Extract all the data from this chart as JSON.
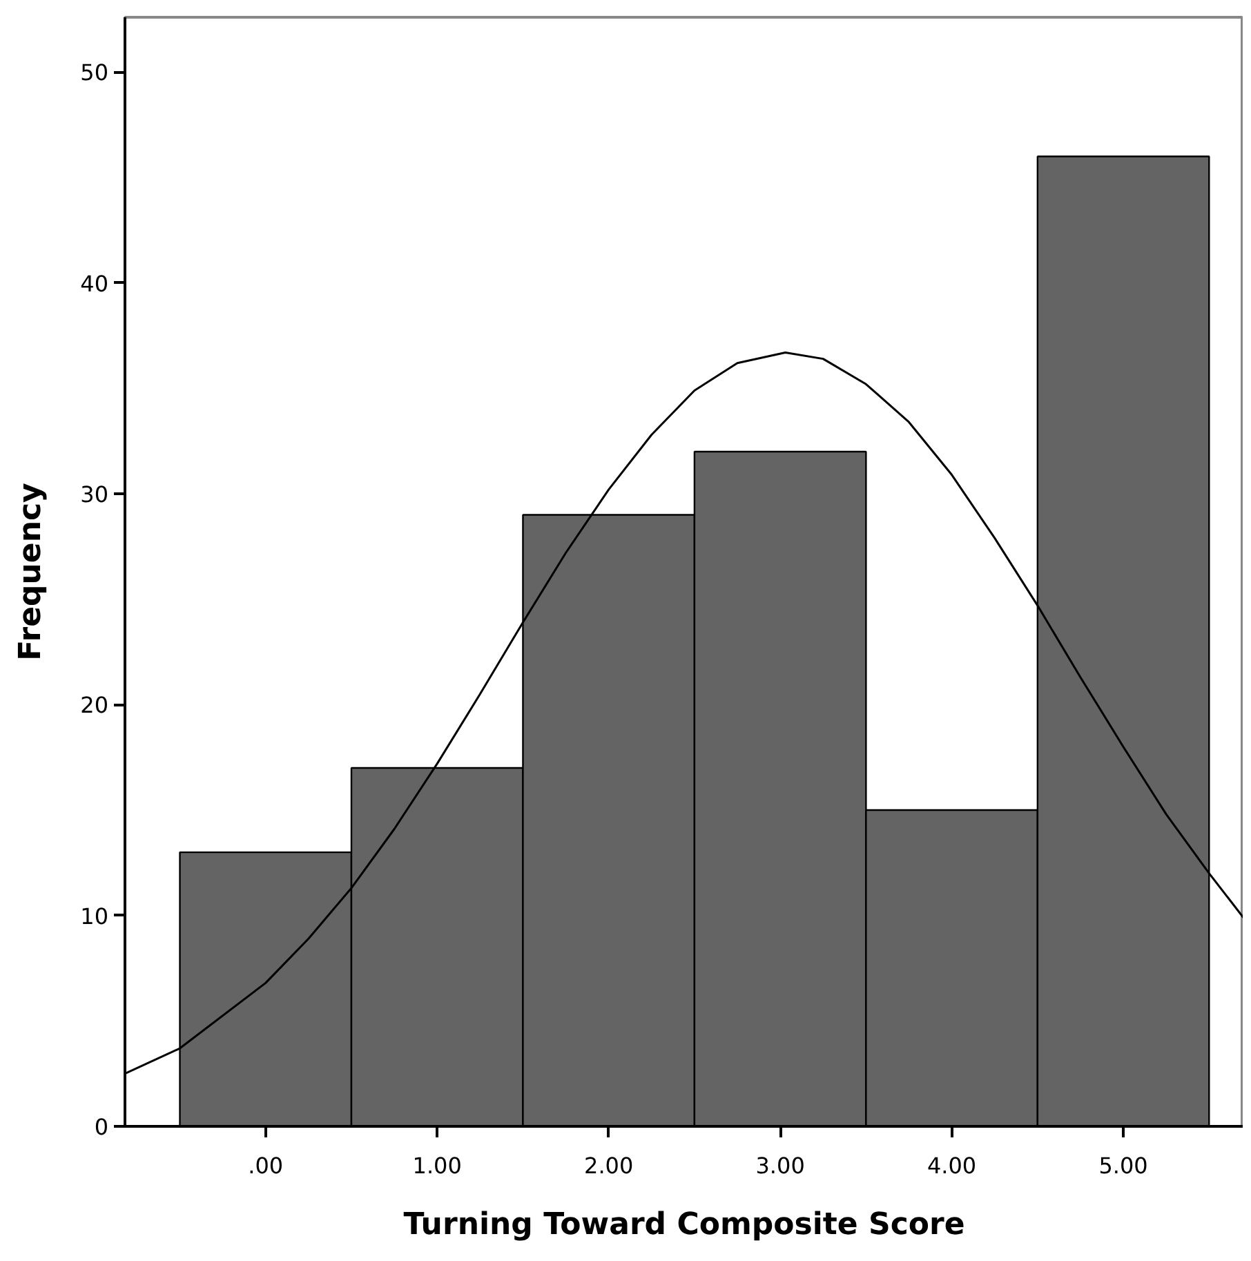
{
  "chart_data": {
    "type": "histogram",
    "xlabel": "Turning Toward Composite Score",
    "ylabel": "Frequency",
    "bins": [
      -0.5,
      0.5,
      1.5,
      2.5,
      3.5,
      4.5,
      5.5
    ],
    "values": [
      13,
      17,
      29,
      32,
      15,
      46
    ],
    "color": "#646464",
    "xlim": [
      -0.82,
      5.7
    ],
    "ylim": [
      0,
      52.6
    ],
    "xticks": [
      {
        "value": 0,
        "label": ".00"
      },
      {
        "value": 1,
        "label": "1.00"
      },
      {
        "value": 2,
        "label": "2.00"
      },
      {
        "value": 3,
        "label": "3.00"
      },
      {
        "value": 4,
        "label": "4.00"
      },
      {
        "value": 5,
        "label": "5.00"
      }
    ],
    "yticks": [
      0,
      10,
      20,
      30,
      40,
      50
    ],
    "grid": false,
    "series": [
      {
        "type": "line",
        "color": "#000000",
        "x": [
          -0.82,
          -0.5,
          0,
          0.25,
          0.5,
          0.75,
          1,
          1.25,
          1.5,
          1.75,
          2,
          2.25,
          2.5,
          2.75,
          3.03,
          3.25,
          3.5,
          3.75,
          4,
          4.25,
          4.5,
          4.75,
          5,
          5.25,
          5.5,
          5.7
        ],
        "values": [
          2.5,
          3.7,
          6.8,
          8.9,
          11.3,
          14.1,
          17.2,
          20.5,
          23.9,
          27.2,
          30.2,
          32.8,
          34.9,
          36.2,
          36.7,
          36.4,
          35.2,
          33.4,
          30.9,
          27.9,
          24.7,
          21.3,
          18.0,
          14.8,
          12.0,
          9.9
        ]
      }
    ]
  }
}
